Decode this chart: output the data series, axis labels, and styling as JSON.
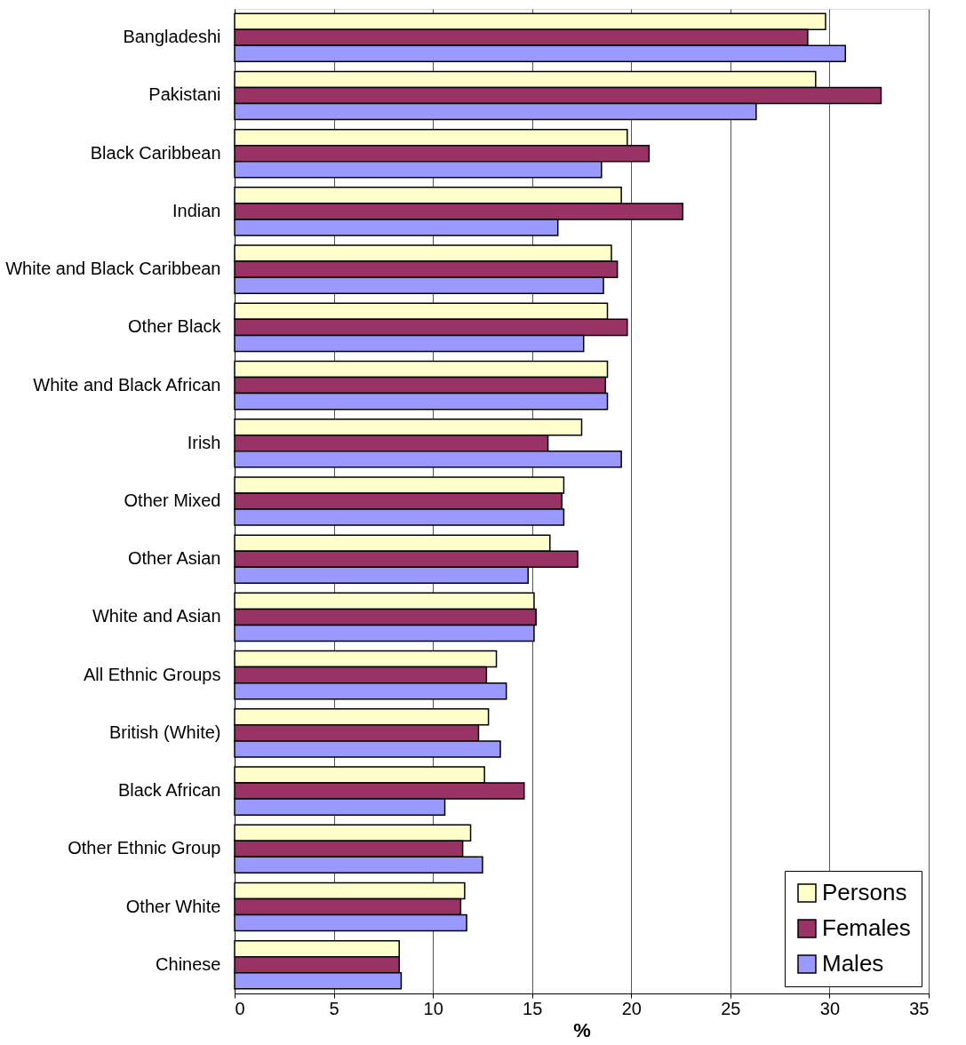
{
  "chart_data": {
    "type": "bar",
    "orientation": "horizontal",
    "xlabel": "%",
    "categories": [
      "Bangladeshi",
      "Pakistani",
      "Black Caribbean",
      "Indian",
      "White and Black Caribbean",
      "Other Black",
      "White and Black African",
      "Irish",
      "Other Mixed",
      "Other Asian",
      "White and Asian",
      "All Ethnic Groups",
      "British (White)",
      "Black African",
      "Other Ethnic Group",
      "Other White",
      "Chinese"
    ],
    "series": [
      {
        "name": "Persons",
        "color": "#ffffcc",
        "values": [
          29.8,
          29.3,
          19.8,
          19.5,
          19.0,
          18.8,
          18.8,
          17.5,
          16.6,
          15.9,
          15.1,
          13.2,
          12.8,
          12.6,
          11.9,
          11.6,
          8.3
        ]
      },
      {
        "name": "Females",
        "color": "#993366",
        "values": [
          28.9,
          32.6,
          20.9,
          22.6,
          19.3,
          19.8,
          18.7,
          15.8,
          16.5,
          17.3,
          15.2,
          12.7,
          12.3,
          14.6,
          11.5,
          11.4,
          8.3
        ]
      },
      {
        "name": "Males",
        "color": "#9999ff",
        "values": [
          30.8,
          26.3,
          18.5,
          16.3,
          18.6,
          17.6,
          18.8,
          19.5,
          16.6,
          14.8,
          15.1,
          13.7,
          13.4,
          10.6,
          12.5,
          11.7,
          8.4
        ]
      }
    ],
    "xlim": [
      0,
      35
    ],
    "xticks": [
      0,
      5,
      10,
      15,
      20,
      25,
      30,
      35
    ],
    "grid": "x",
    "legend": "bottom right"
  }
}
